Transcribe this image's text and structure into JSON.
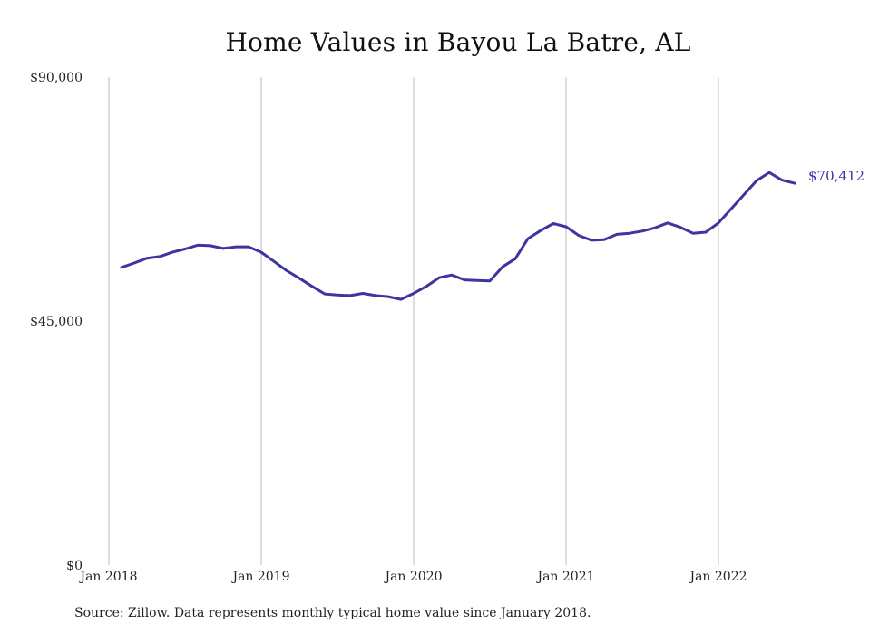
{
  "chart_data": {
    "type": "line",
    "title": "Home Values in Bayou La Batre, AL",
    "xlabel": "",
    "ylabel": "",
    "ylim": [
      0,
      90000
    ],
    "yticks": [
      {
        "value": 0,
        "label": "$0"
      },
      {
        "value": 45000,
        "label": "$45,000"
      },
      {
        "value": 90000,
        "label": "$90,000"
      }
    ],
    "xticks": [
      {
        "value": "2018-01",
        "label": "Jan 2018"
      },
      {
        "value": "2019-01",
        "label": "Jan 2019"
      },
      {
        "value": "2020-01",
        "label": "Jan 2020"
      },
      {
        "value": "2021-01",
        "label": "Jan 2021"
      },
      {
        "value": "2022-01",
        "label": "Jan 2022"
      }
    ],
    "grid": "vertical",
    "line_color": "#3d35a0",
    "end_label": "$70,412",
    "source": "Source: Zillow. Data represents monthly typical home value since January 2018.",
    "series": [
      {
        "x": [
          "2018-02",
          "2018-03",
          "2018-04",
          "2018-05",
          "2018-06",
          "2018-07",
          "2018-08",
          "2018-09",
          "2018-10",
          "2018-11",
          "2018-12",
          "2019-01",
          "2019-02",
          "2019-03",
          "2019-04",
          "2019-05",
          "2019-06",
          "2019-07",
          "2019-08",
          "2019-09",
          "2019-10",
          "2019-11",
          "2019-12",
          "2020-01",
          "2020-02",
          "2020-03",
          "2020-04",
          "2020-05",
          "2020-06",
          "2020-07",
          "2020-08",
          "2020-09",
          "2020-10",
          "2020-11",
          "2020-12",
          "2021-01",
          "2021-02",
          "2021-03",
          "2021-04",
          "2021-05",
          "2021-06",
          "2021-07",
          "2021-08",
          "2021-09",
          "2021-10",
          "2021-11",
          "2021-12",
          "2022-01",
          "2022-02",
          "2022-03",
          "2022-04",
          "2022-05",
          "2022-06",
          "2022-07"
        ],
        "values": [
          54900,
          55700,
          56600,
          56900,
          57700,
          58300,
          59000,
          58900,
          58400,
          58700,
          58700,
          57700,
          56000,
          54300,
          52900,
          51400,
          50000,
          49800,
          49700,
          50100,
          49700,
          49500,
          49000,
          50100,
          51400,
          53000,
          53500,
          52600,
          52500,
          52400,
          55000,
          56500,
          60200,
          61700,
          63000,
          62400,
          60800,
          59900,
          60000,
          61000,
          61200,
          61600,
          62200,
          63100,
          62300,
          61200,
          61400,
          63100,
          65700,
          68300,
          70900,
          72400,
          71000,
          70412
        ]
      }
    ]
  }
}
